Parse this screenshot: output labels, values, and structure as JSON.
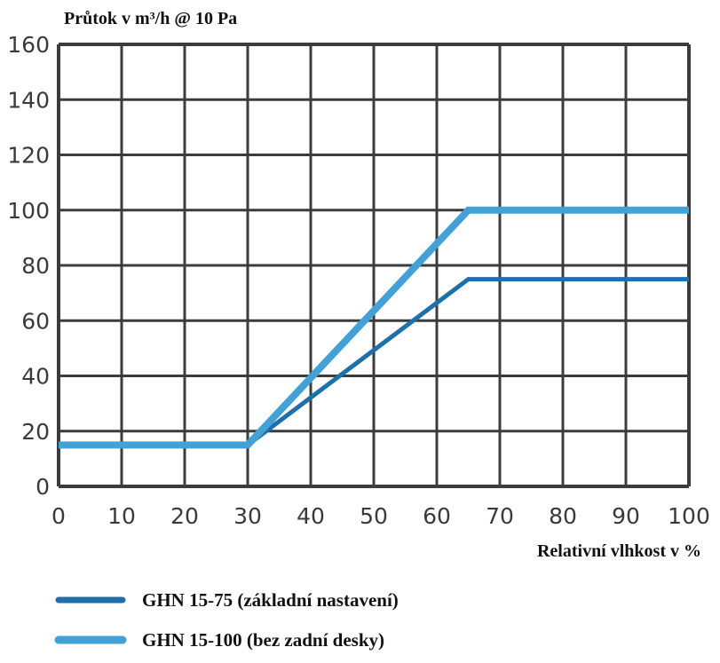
{
  "chart_data": {
    "type": "line",
    "ylabel": "Průtok v m³/h @ 10 Pa",
    "xlabel": "Relativní vlhkost v %",
    "xlim": [
      0,
      100
    ],
    "ylim": [
      0,
      160
    ],
    "xticks": [
      0,
      10,
      20,
      30,
      40,
      50,
      60,
      70,
      80,
      90,
      100
    ],
    "yticks": [
      0,
      20,
      40,
      60,
      80,
      100,
      120,
      140,
      160
    ],
    "grid": true,
    "legend_position": "bottom-left",
    "series": [
      {
        "name": "GHN 15-75 (základní nastavení)",
        "color": "#1f6fa8",
        "x": [
          0,
          30,
          65,
          100
        ],
        "y": [
          15,
          15,
          75,
          75
        ]
      },
      {
        "name": "GHN 15-100 (bez zadní desky)",
        "color": "#43a1d6",
        "x": [
          0,
          30,
          65,
          100
        ],
        "y": [
          15,
          15,
          100,
          100
        ]
      }
    ]
  }
}
